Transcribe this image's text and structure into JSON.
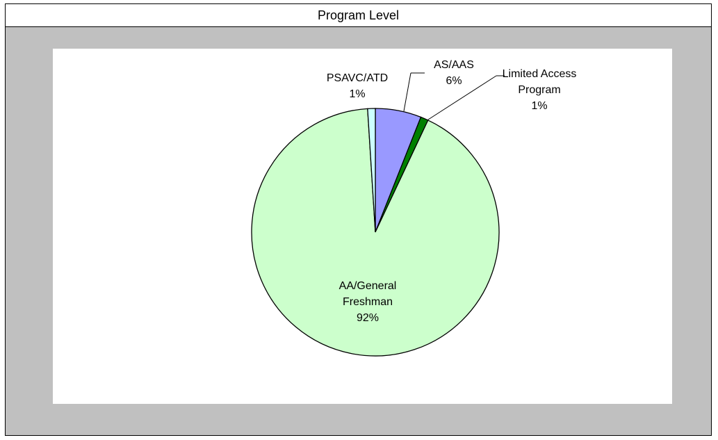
{
  "chart_data": {
    "type": "pie",
    "title": "Program Level",
    "categories": [
      "AS/AAS",
      "Limited Access Program",
      "AA/General Freshman",
      "PSAVC/ATD"
    ],
    "values": [
      6,
      1,
      92,
      1
    ],
    "value_labels": [
      "6%",
      "1%",
      "92%",
      "1%"
    ],
    "colors": [
      "#9999ff",
      "#008000",
      "#ccffcc",
      "#ccffff"
    ]
  }
}
